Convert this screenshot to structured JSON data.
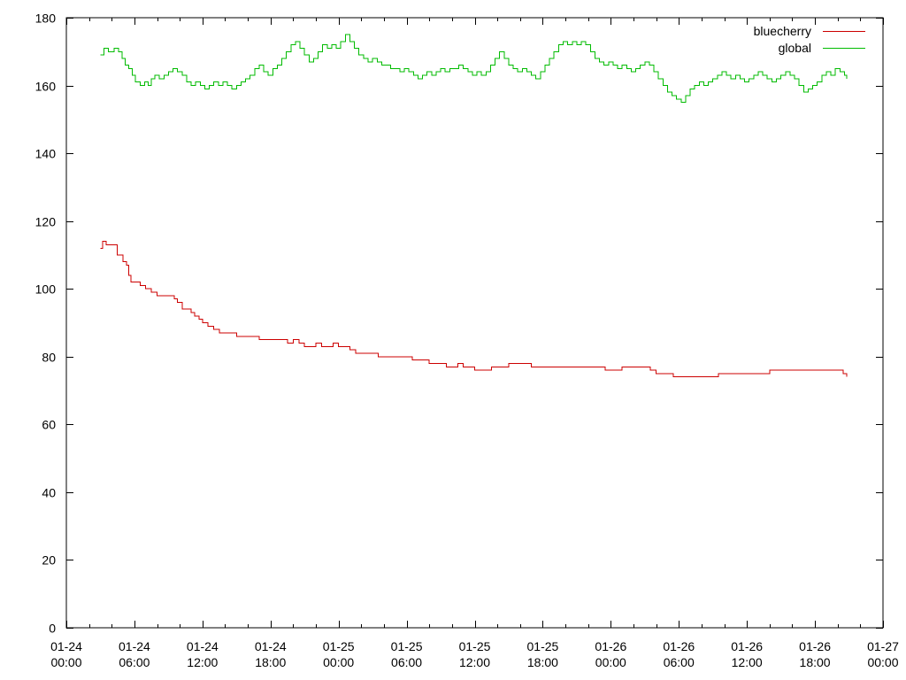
{
  "chart_data": {
    "type": "line",
    "title": "",
    "xlabel": "",
    "ylabel": "",
    "ylim": [
      0,
      180
    ],
    "xlim": [
      "2024-01-24 00:00",
      "2024-01-27 00:00"
    ],
    "grid": false,
    "legend_position": "top-right",
    "y_ticks": [
      {
        "value": 0,
        "label": "0"
      },
      {
        "value": 20,
        "label": "20"
      },
      {
        "value": 40,
        "label": "40"
      },
      {
        "value": 60,
        "label": "60"
      },
      {
        "value": 80,
        "label": "80"
      },
      {
        "value": 100,
        "label": "100"
      },
      {
        "value": 120,
        "label": "120"
      },
      {
        "value": 140,
        "label": "140"
      },
      {
        "value": 160,
        "label": "160"
      },
      {
        "value": 180,
        "label": "180"
      }
    ],
    "x_ticks": [
      {
        "hours": 0,
        "line1": "01-24",
        "line2": "00:00"
      },
      {
        "hours": 6,
        "line1": "01-24",
        "line2": "06:00"
      },
      {
        "hours": 12,
        "line1": "01-24",
        "line2": "12:00"
      },
      {
        "hours": 18,
        "line1": "01-24",
        "line2": "18:00"
      },
      {
        "hours": 24,
        "line1": "01-25",
        "line2": "00:00"
      },
      {
        "hours": 30,
        "line1": "01-25",
        "line2": "06:00"
      },
      {
        "hours": 36,
        "line1": "01-25",
        "line2": "12:00"
      },
      {
        "hours": 42,
        "line1": "01-25",
        "line2": "18:00"
      },
      {
        "hours": 48,
        "line1": "01-26",
        "line2": "00:00"
      },
      {
        "hours": 54,
        "line1": "01-26",
        "line2": "06:00"
      },
      {
        "hours": 60,
        "line1": "01-26",
        "line2": "12:00"
      },
      {
        "hours": 66,
        "line1": "01-26",
        "line2": "18:00"
      },
      {
        "hours": 72,
        "line1": "01-27",
        "line2": "00:00"
      }
    ],
    "series": [
      {
        "name": "bluecherry",
        "color": "#cc0000",
        "points": [
          [
            3.0,
            112
          ],
          [
            3.2,
            114
          ],
          [
            3.5,
            113
          ],
          [
            4.3,
            113
          ],
          [
            4.5,
            110
          ],
          [
            5.0,
            108
          ],
          [
            5.3,
            107
          ],
          [
            5.5,
            104
          ],
          [
            5.7,
            102
          ],
          [
            6.5,
            101
          ],
          [
            7.0,
            100
          ],
          [
            7.5,
            99
          ],
          [
            8.0,
            98
          ],
          [
            9.0,
            98
          ],
          [
            9.5,
            97
          ],
          [
            9.8,
            96
          ],
          [
            10.2,
            94
          ],
          [
            11.0,
            93
          ],
          [
            11.3,
            92
          ],
          [
            11.7,
            91
          ],
          [
            12.0,
            90
          ],
          [
            12.5,
            89
          ],
          [
            13.0,
            88
          ],
          [
            13.5,
            87
          ],
          [
            14.5,
            87
          ],
          [
            15.0,
            86
          ],
          [
            16.5,
            86
          ],
          [
            17.0,
            85
          ],
          [
            19.0,
            85
          ],
          [
            19.5,
            84
          ],
          [
            20.0,
            85
          ],
          [
            20.5,
            84
          ],
          [
            21.0,
            83
          ],
          [
            21.5,
            83
          ],
          [
            22.0,
            84
          ],
          [
            22.5,
            83
          ],
          [
            23.0,
            83
          ],
          [
            23.5,
            84
          ],
          [
            24.0,
            83
          ],
          [
            24.5,
            83
          ],
          [
            25.0,
            82
          ],
          [
            25.5,
            81
          ],
          [
            26.0,
            81
          ],
          [
            27.0,
            81
          ],
          [
            27.5,
            80
          ],
          [
            29.0,
            80
          ],
          [
            30.0,
            80
          ],
          [
            30.5,
            79
          ],
          [
            31.5,
            79
          ],
          [
            32.0,
            78
          ],
          [
            33.0,
            78
          ],
          [
            33.5,
            77
          ],
          [
            34.5,
            78
          ],
          [
            35.0,
            77
          ],
          [
            35.5,
            77
          ],
          [
            36.0,
            76
          ],
          [
            37.0,
            76
          ],
          [
            37.5,
            77
          ],
          [
            38.5,
            77
          ],
          [
            39.0,
            78
          ],
          [
            40.5,
            78
          ],
          [
            41.0,
            77
          ],
          [
            42.0,
            77
          ],
          [
            43.0,
            77
          ],
          [
            44.0,
            77
          ],
          [
            45.0,
            77
          ],
          [
            46.0,
            77
          ],
          [
            47.0,
            77
          ],
          [
            47.5,
            76
          ],
          [
            48.5,
            76
          ],
          [
            49.0,
            77
          ],
          [
            50.0,
            77
          ],
          [
            51.0,
            77
          ],
          [
            51.5,
            76
          ],
          [
            52.0,
            75
          ],
          [
            53.0,
            75
          ],
          [
            53.5,
            74
          ],
          [
            55.0,
            74
          ],
          [
            56.0,
            74
          ],
          [
            57.0,
            74
          ],
          [
            57.5,
            75
          ],
          [
            58.5,
            75
          ],
          [
            60.0,
            75
          ],
          [
            61.0,
            75
          ],
          [
            62.0,
            76
          ],
          [
            63.0,
            76
          ],
          [
            64.0,
            76
          ],
          [
            65.0,
            76
          ],
          [
            66.0,
            76
          ],
          [
            67.0,
            76
          ],
          [
            68.0,
            76
          ],
          [
            68.5,
            75
          ],
          [
            68.8,
            74
          ]
        ]
      },
      {
        "name": "global",
        "color": "#00bb00",
        "points": [
          [
            3.0,
            169
          ],
          [
            3.3,
            171
          ],
          [
            3.7,
            170
          ],
          [
            4.2,
            171
          ],
          [
            4.6,
            170
          ],
          [
            4.9,
            168
          ],
          [
            5.2,
            166
          ],
          [
            5.5,
            165
          ],
          [
            5.8,
            163
          ],
          [
            6.1,
            161
          ],
          [
            6.5,
            160
          ],
          [
            6.9,
            161
          ],
          [
            7.2,
            160
          ],
          [
            7.5,
            162
          ],
          [
            7.8,
            163
          ],
          [
            8.2,
            162
          ],
          [
            8.6,
            163
          ],
          [
            9.0,
            164
          ],
          [
            9.4,
            165
          ],
          [
            9.8,
            164
          ],
          [
            10.2,
            163
          ],
          [
            10.6,
            161
          ],
          [
            11.0,
            160
          ],
          [
            11.4,
            161
          ],
          [
            11.8,
            160
          ],
          [
            12.2,
            159
          ],
          [
            12.6,
            160
          ],
          [
            13.0,
            161
          ],
          [
            13.4,
            160
          ],
          [
            13.8,
            161
          ],
          [
            14.2,
            160
          ],
          [
            14.6,
            159
          ],
          [
            15.0,
            160
          ],
          [
            15.4,
            161
          ],
          [
            15.8,
            162
          ],
          [
            16.2,
            163
          ],
          [
            16.6,
            165
          ],
          [
            17.0,
            166
          ],
          [
            17.4,
            164
          ],
          [
            17.8,
            163
          ],
          [
            18.2,
            165
          ],
          [
            18.6,
            166
          ],
          [
            19.0,
            168
          ],
          [
            19.4,
            170
          ],
          [
            19.8,
            172
          ],
          [
            20.2,
            173
          ],
          [
            20.6,
            171
          ],
          [
            21.0,
            169
          ],
          [
            21.4,
            167
          ],
          [
            21.8,
            168
          ],
          [
            22.2,
            170
          ],
          [
            22.6,
            172
          ],
          [
            23.0,
            171
          ],
          [
            23.4,
            172
          ],
          [
            23.8,
            171
          ],
          [
            24.2,
            173
          ],
          [
            24.6,
            175
          ],
          [
            25.0,
            173
          ],
          [
            25.4,
            171
          ],
          [
            25.8,
            169
          ],
          [
            26.2,
            168
          ],
          [
            26.6,
            167
          ],
          [
            27.0,
            168
          ],
          [
            27.4,
            167
          ],
          [
            27.8,
            166
          ],
          [
            28.2,
            166
          ],
          [
            28.6,
            165
          ],
          [
            29.0,
            165
          ],
          [
            29.4,
            164
          ],
          [
            29.8,
            165
          ],
          [
            30.2,
            164
          ],
          [
            30.6,
            163
          ],
          [
            31.0,
            162
          ],
          [
            31.4,
            163
          ],
          [
            31.8,
            164
          ],
          [
            32.2,
            163
          ],
          [
            32.6,
            164
          ],
          [
            33.0,
            165
          ],
          [
            33.4,
            164
          ],
          [
            33.8,
            165
          ],
          [
            34.2,
            165
          ],
          [
            34.6,
            166
          ],
          [
            35.0,
            165
          ],
          [
            35.4,
            164
          ],
          [
            35.8,
            163
          ],
          [
            36.2,
            164
          ],
          [
            36.6,
            163
          ],
          [
            37.0,
            164
          ],
          [
            37.4,
            166
          ],
          [
            37.8,
            168
          ],
          [
            38.2,
            170
          ],
          [
            38.6,
            168
          ],
          [
            39.0,
            166
          ],
          [
            39.4,
            165
          ],
          [
            39.8,
            164
          ],
          [
            40.2,
            165
          ],
          [
            40.6,
            164
          ],
          [
            41.0,
            163
          ],
          [
            41.4,
            162
          ],
          [
            41.8,
            164
          ],
          [
            42.2,
            166
          ],
          [
            42.6,
            168
          ],
          [
            43.0,
            170
          ],
          [
            43.4,
            172
          ],
          [
            43.8,
            173
          ],
          [
            44.2,
            172
          ],
          [
            44.6,
            173
          ],
          [
            45.0,
            172
          ],
          [
            45.4,
            173
          ],
          [
            45.8,
            172
          ],
          [
            46.2,
            170
          ],
          [
            46.6,
            168
          ],
          [
            47.0,
            167
          ],
          [
            47.4,
            166
          ],
          [
            47.8,
            167
          ],
          [
            48.2,
            166
          ],
          [
            48.6,
            165
          ],
          [
            49.0,
            166
          ],
          [
            49.4,
            165
          ],
          [
            49.8,
            164
          ],
          [
            50.2,
            165
          ],
          [
            50.6,
            166
          ],
          [
            51.0,
            167
          ],
          [
            51.4,
            166
          ],
          [
            51.8,
            164
          ],
          [
            52.2,
            162
          ],
          [
            52.6,
            160
          ],
          [
            53.0,
            158
          ],
          [
            53.4,
            157
          ],
          [
            53.8,
            156
          ],
          [
            54.2,
            155
          ],
          [
            54.6,
            157
          ],
          [
            55.0,
            159
          ],
          [
            55.4,
            160
          ],
          [
            55.8,
            161
          ],
          [
            56.2,
            160
          ],
          [
            56.6,
            161
          ],
          [
            57.0,
            162
          ],
          [
            57.4,
            163
          ],
          [
            57.8,
            164
          ],
          [
            58.2,
            163
          ],
          [
            58.6,
            162
          ],
          [
            59.0,
            163
          ],
          [
            59.4,
            162
          ],
          [
            59.8,
            161
          ],
          [
            60.2,
            162
          ],
          [
            60.6,
            163
          ],
          [
            61.0,
            164
          ],
          [
            61.4,
            163
          ],
          [
            61.8,
            162
          ],
          [
            62.2,
            161
          ],
          [
            62.6,
            162
          ],
          [
            63.0,
            163
          ],
          [
            63.4,
            164
          ],
          [
            63.8,
            163
          ],
          [
            64.2,
            162
          ],
          [
            64.6,
            160
          ],
          [
            65.0,
            158
          ],
          [
            65.4,
            159
          ],
          [
            65.8,
            160
          ],
          [
            66.2,
            161
          ],
          [
            66.6,
            163
          ],
          [
            67.0,
            164
          ],
          [
            67.4,
            163
          ],
          [
            67.8,
            165
          ],
          [
            68.2,
            164
          ],
          [
            68.6,
            163
          ],
          [
            68.8,
            162
          ]
        ]
      }
    ]
  }
}
